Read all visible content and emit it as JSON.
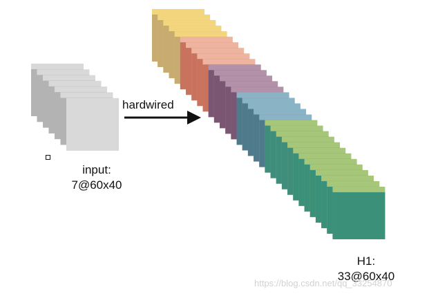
{
  "input_label": "input:",
  "input_shape": "7@60x40",
  "arrow_label": "hardwired",
  "output_label": "H1:",
  "output_shape": "33@60x40",
  "watermark": "https://blog.csdn.net/qq_33254870",
  "input_stack": {
    "count": 7,
    "colors": [
      "#d9d9d9",
      "#b3b3b3"
    ]
  },
  "output_stack": {
    "count": 33,
    "groups": [
      {
        "count": 5,
        "colors": [
          "#f3d57e",
          "#c7ab70"
        ]
      },
      {
        "count": 5,
        "colors": [
          "#efb49f",
          "#c9725e"
        ]
      },
      {
        "count": 5,
        "colors": [
          "#b291a9",
          "#7a5672"
        ]
      },
      {
        "count": 5,
        "colors": [
          "#8ab4c6",
          "#4e7a8c"
        ]
      },
      {
        "count": 5,
        "colors": [
          "#a6c77a",
          "#3f8e7c"
        ]
      },
      {
        "count": 8,
        "colors": [
          "#a6c77a",
          "#3a9079"
        ]
      }
    ]
  }
}
